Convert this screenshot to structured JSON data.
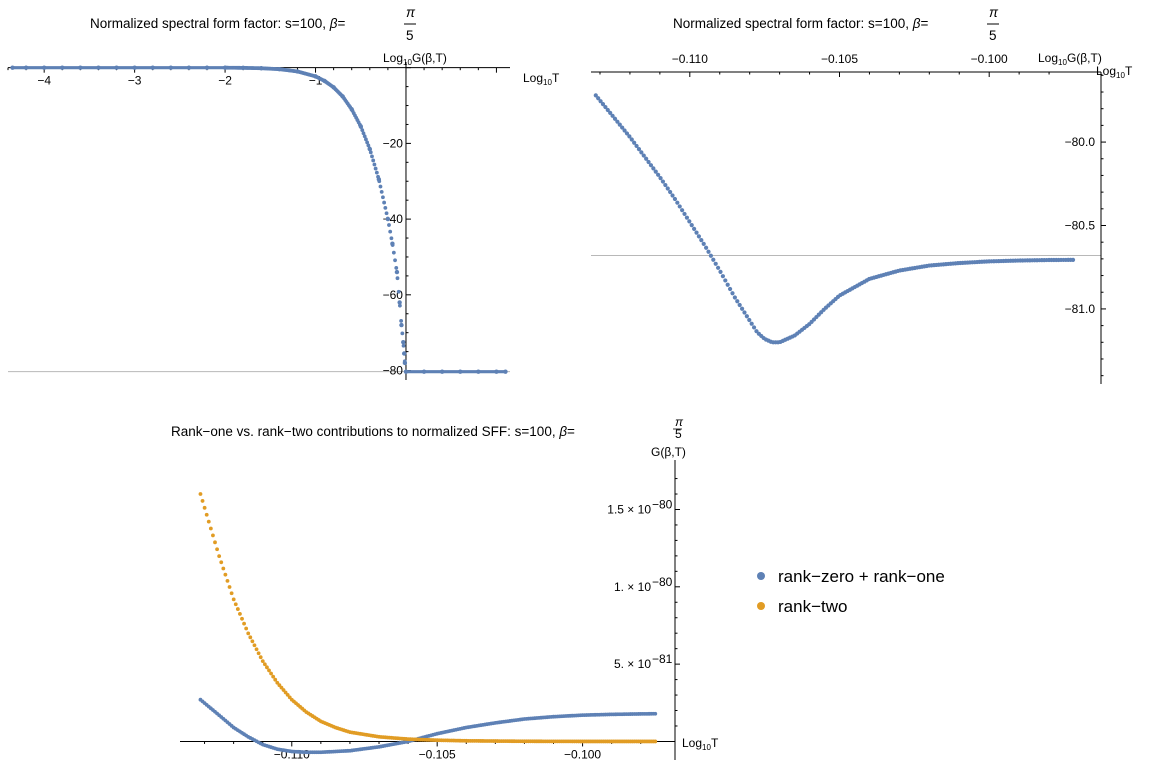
{
  "chart_data": [
    {
      "id": "c1",
      "type": "scatter",
      "title": "Normalized spectral form factor: s=100, β=π/5",
      "title_text": "Normalized spectral form factor: s=100, ",
      "beta": "β",
      "frac_num": "π",
      "frac_den": "5",
      "xlabel_prefix": "Log",
      "xlabel_sub": "10",
      "xlabel_suffix": "T",
      "ylabel_prefix": "Log",
      "ylabel_sub": "10",
      "ylabel_suffix": "G(β,T)",
      "xlim": [
        -4.4,
        1.15
      ],
      "ylim": [
        -82.5,
        1.5
      ],
      "xticks": [
        -4,
        -3,
        -2,
        -1
      ],
      "xtick_labels": [
        "−4",
        "−3",
        "−2",
        "−1"
      ],
      "yticks": [
        -20,
        -40,
        -60,
        -80
      ],
      "ytick_labels": [
        "−20",
        "−40",
        "−60",
        "−80"
      ],
      "series": [
        {
          "color": "#5e81b5",
          "points": [
            [
              -4.35,
              0
            ],
            [
              -4.2,
              0
            ],
            [
              -4.0,
              0
            ],
            [
              -3.8,
              0
            ],
            [
              -3.6,
              0
            ],
            [
              -3.4,
              0
            ],
            [
              -3.2,
              0
            ],
            [
              -3.0,
              0
            ],
            [
              -2.8,
              0
            ],
            [
              -2.6,
              0
            ],
            [
              -2.4,
              0
            ],
            [
              -2.2,
              0
            ],
            [
              -2.0,
              0
            ],
            [
              -1.8,
              -0.05
            ],
            [
              -1.6,
              -0.15
            ],
            [
              -1.4,
              -0.4
            ],
            [
              -1.2,
              -1.0
            ],
            [
              -1.0,
              -2.3
            ],
            [
              -0.9,
              -3.5
            ],
            [
              -0.8,
              -5.2
            ],
            [
              -0.7,
              -7.6
            ],
            [
              -0.6,
              -11.0
            ],
            [
              -0.5,
              -15.5
            ],
            [
              -0.4,
              -21.5
            ],
            [
              -0.3,
              -29.5
            ],
            [
              -0.2,
              -40.0
            ],
            [
              -0.15,
              -46.5
            ],
            [
              -0.1,
              -54.0
            ],
            [
              -0.07,
              -62.0
            ],
            [
              -0.05,
              -68.0
            ],
            [
              -0.03,
              -72.5
            ],
            [
              -0.02,
              -75.5
            ],
            [
              -0.012,
              -78.0
            ],
            [
              0.0,
              -80.3
            ],
            [
              0.2,
              -80.3
            ],
            [
              0.4,
              -80.3
            ],
            [
              0.6,
              -80.3
            ],
            [
              0.8,
              -80.3
            ],
            [
              1.0,
              -80.3
            ],
            [
              1.1,
              -80.3
            ]
          ]
        }
      ],
      "hline": -80.3
    },
    {
      "id": "c2",
      "type": "scatter",
      "title": "Normalized spectral form factor: s=100, β=π/5",
      "title_text": "Normalized spectral form factor: s=100, ",
      "beta": "β",
      "frac_num": "π",
      "frac_den": "5",
      "xlabel_prefix": "Log",
      "xlabel_sub": "10",
      "xlabel_suffix": "T",
      "ylabel_prefix": "Log",
      "ylabel_sub": "10",
      "ylabel_suffix": "G(β,T)",
      "xlim": [
        -0.1133,
        -0.0968
      ],
      "ylim": [
        -81.45,
        -79.58
      ],
      "xticks": [
        -0.11,
        -0.105,
        -0.1
      ],
      "xtick_labels": [
        "−0.110",
        "−0.105",
        "−0.100"
      ],
      "yticks": [
        -80.0,
        -80.5,
        -81.0
      ],
      "ytick_labels": [
        "−80.0",
        "−80.5",
        "−81.0"
      ],
      "series": [
        {
          "color": "#5e81b5",
          "points": [
            [
              -0.11314,
              -79.72
            ],
            [
              -0.1125,
              -79.86
            ],
            [
              -0.112,
              -79.97
            ],
            [
              -0.1115,
              -80.09
            ],
            [
              -0.111,
              -80.21
            ],
            [
              -0.1105,
              -80.34
            ],
            [
              -0.11,
              -80.48
            ],
            [
              -0.1095,
              -80.62
            ],
            [
              -0.109,
              -80.77
            ],
            [
              -0.1085,
              -80.93
            ],
            [
              -0.108,
              -81.07
            ],
            [
              -0.10775,
              -81.14
            ],
            [
              -0.1075,
              -81.18
            ],
            [
              -0.10725,
              -81.2
            ],
            [
              -0.107,
              -81.2
            ],
            [
              -0.1065,
              -81.16
            ],
            [
              -0.106,
              -81.09
            ],
            [
              -0.1055,
              -81.0
            ],
            [
              -0.105,
              -80.92
            ],
            [
              -0.104,
              -80.82
            ],
            [
              -0.103,
              -80.77
            ],
            [
              -0.102,
              -80.74
            ],
            [
              -0.101,
              -80.725
            ],
            [
              -0.1,
              -80.715
            ],
            [
              -0.099,
              -80.71
            ],
            [
              -0.098,
              -80.707
            ],
            [
              -0.0972,
              -80.706
            ]
          ]
        }
      ],
      "hline": -80.68
    },
    {
      "id": "c3",
      "type": "scatter",
      "title": "Rank-one vs. rank-two contributions to normalized SFF: s=100, β=π/5",
      "title_text": "Rank−one vs. rank−two contributions to normalized SFF: s=100, ",
      "beta": "β",
      "frac_num": "π",
      "frac_den": "5",
      "xlabel_prefix": "Log",
      "xlabel_sub": "10",
      "xlabel_suffix": "T",
      "ylabel": "G(β,T)",
      "xlim": [
        -0.1135,
        -0.0972
      ],
      "ylim": [
        -0.12,
        1.82
      ],
      "y_unit": "1e-80",
      "xticks": [
        -0.11,
        -0.105,
        -0.1
      ],
      "xtick_labels": [
        "−0.110",
        "−0.105",
        "−0.100"
      ],
      "yticks": [
        0.5,
        1.0,
        1.5
      ],
      "ytick_labels": [
        "5. × 10",
        "1. × 10",
        "1.5 × 10"
      ],
      "ytick_exps": [
        "−81",
        "−80",
        "−80"
      ],
      "legend_position": "right",
      "series": [
        {
          "name": "rank−zero + rank−one",
          "color": "#5e81b5",
          "points": [
            [
              -0.11314,
              0.27
            ],
            [
              -0.1125,
              0.17
            ],
            [
              -0.112,
              0.09
            ],
            [
              -0.1115,
              0.03
            ],
            [
              -0.111,
              -0.02
            ],
            [
              -0.1105,
              -0.05
            ],
            [
              -0.11,
              -0.065
            ],
            [
              -0.1095,
              -0.07
            ],
            [
              -0.109,
              -0.07
            ],
            [
              -0.108,
              -0.06
            ],
            [
              -0.107,
              -0.035
            ],
            [
              -0.106,
              0.0
            ],
            [
              -0.105,
              0.05
            ],
            [
              -0.104,
              0.09
            ],
            [
              -0.103,
              0.12
            ],
            [
              -0.102,
              0.145
            ],
            [
              -0.101,
              0.16
            ],
            [
              -0.1,
              0.17
            ],
            [
              -0.099,
              0.175
            ],
            [
              -0.098,
              0.178
            ],
            [
              -0.0975,
              0.179
            ]
          ]
        },
        {
          "name": "rank−two",
          "color": "#e19c24",
          "points": [
            [
              -0.11314,
              1.6
            ],
            [
              -0.1125,
              1.2
            ],
            [
              -0.112,
              0.92
            ],
            [
              -0.1115,
              0.7
            ],
            [
              -0.111,
              0.52
            ],
            [
              -0.1105,
              0.38
            ],
            [
              -0.11,
              0.27
            ],
            [
              -0.1095,
              0.19
            ],
            [
              -0.109,
              0.13
            ],
            [
              -0.1085,
              0.09
            ],
            [
              -0.108,
              0.06
            ],
            [
              -0.107,
              0.03
            ],
            [
              -0.106,
              0.015
            ],
            [
              -0.105,
              0.008
            ],
            [
              -0.104,
              0.004
            ],
            [
              -0.102,
              0.001
            ],
            [
              -0.1,
              0.0
            ],
            [
              -0.098,
              0.0
            ],
            [
              -0.0975,
              0.0
            ]
          ]
        }
      ]
    }
  ]
}
